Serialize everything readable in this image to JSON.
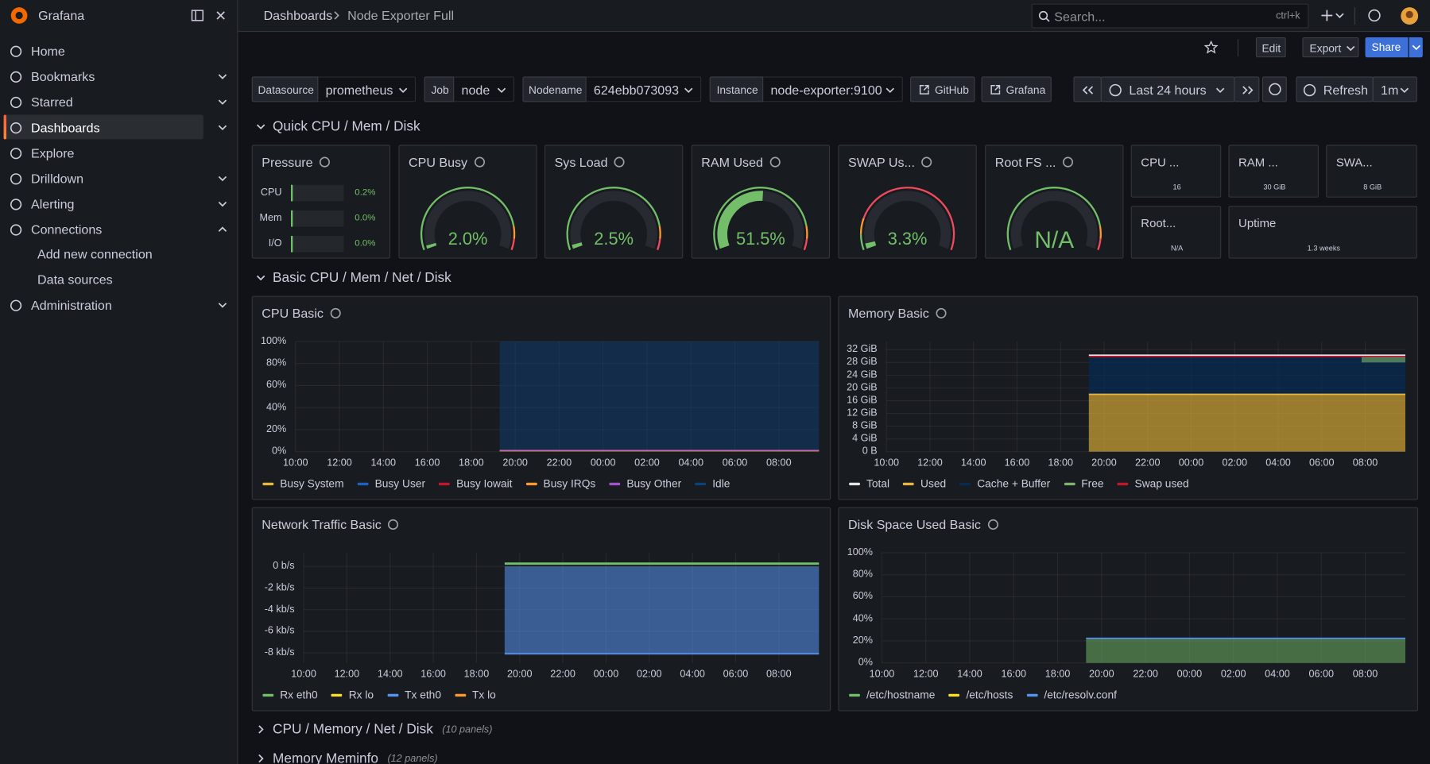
{
  "sidebar": {
    "brand": "Grafana",
    "items": [
      "Home",
      "Bookmarks",
      "Starred",
      "Dashboards",
      "Explore",
      "Drilldown",
      "Alerting",
      "Connections",
      "Administration"
    ],
    "subitems": [
      "Add new connection",
      "Data sources"
    ]
  },
  "topbar": {
    "breadcrumb": [
      "Dashboards",
      "Node Exporter Full"
    ],
    "search_placeholder": "Search...",
    "shortcut": "ctrl+k"
  },
  "toolbar": {
    "buttons": [
      "Edit",
      "Export",
      "Share"
    ]
  },
  "variables": [
    {
      "label": "Datasource",
      "value": "prometheus"
    },
    {
      "label": "Job",
      "value": "node"
    },
    {
      "label": "Nodename",
      "value": "624ebb073093"
    },
    {
      "label": "Instance",
      "value": "node-exporter:9100"
    }
  ],
  "links": [
    "GitHub",
    "Grafana"
  ],
  "time_range": "Last 24 hours",
  "refresh": "Refresh",
  "interval": "1m",
  "rows": [
    {
      "title": "Quick CPU / Mem / Disk"
    },
    {
      "title": "Basic CPU / Mem / Net / Disk"
    },
    {
      "title": "CPU / Memory / Net / Disk",
      "note": "(10 panels)"
    },
    {
      "title": "Memory Meminfo",
      "note": "(12 panels)"
    }
  ],
  "pressure": {
    "title": "Pressure",
    "rows": [
      {
        "label": "CPU",
        "value": 0.2,
        "value_label": "0.2%"
      },
      {
        "label": "Mem",
        "value": 0,
        "value_label": "0.0%"
      },
      {
        "label": "I/O",
        "value": 0,
        "value_label": "0.0%"
      }
    ]
  },
  "gauges": [
    {
      "title": "CPU Busy",
      "value": 2,
      "value_label": "2.0%"
    },
    {
      "title": "Sys Load",
      "value": 2.5,
      "value_label": "2.5%"
    },
    {
      "title": "RAM Used",
      "value": 51.5,
      "value_label": "51.5%"
    },
    {
      "title": "SWAP Us...",
      "value": 3.3,
      "value_label": "3.3%"
    },
    {
      "title": "Root FS ...",
      "value": null,
      "value_label": "N/A"
    }
  ],
  "stats": [
    {
      "title": "CPU ...",
      "value": "16"
    },
    {
      "title": "RAM ...",
      "value": "30 GiB"
    },
    {
      "title": "SWA...",
      "value": "8 GiB"
    },
    {
      "title": "Root...",
      "value": "N/A"
    },
    {
      "title": "Uptime",
      "value": "1.3 weeks"
    }
  ],
  "panels": [
    {
      "title": "CPU Basic",
      "yticks": [
        "0%",
        "20%",
        "40%",
        "60%",
        "80%",
        "100%"
      ],
      "xticks": [
        "10:00",
        "12:00",
        "14:00",
        "16:00",
        "18:00",
        "20:00",
        "22:00",
        "00:00",
        "02:00",
        "04:00",
        "06:00",
        "08:00"
      ],
      "legend": [
        {
          "name": "Busy System",
          "color": "#eab839"
        },
        {
          "name": "Busy User",
          "color": "#1f60c4"
        },
        {
          "name": "Busy Iowait",
          "color": "#c4162a"
        },
        {
          "name": "Busy IRQs",
          "color": "#ff9830"
        },
        {
          "name": "Busy Other",
          "color": "#a352cc"
        },
        {
          "name": "Idle",
          "color": "#0a437c"
        }
      ]
    },
    {
      "title": "Memory Basic",
      "yticks": [
        "0 B",
        "4 GiB",
        "8 GiB",
        "12 GiB",
        "16 GiB",
        "20 GiB",
        "24 GiB",
        "28 GiB",
        "32 GiB"
      ],
      "xticks": [
        "10:00",
        "12:00",
        "14:00",
        "16:00",
        "18:00",
        "20:00",
        "22:00",
        "00:00",
        "02:00",
        "04:00",
        "06:00",
        "08:00"
      ],
      "legend": [
        {
          "name": "Total",
          "color": "#e6e6e6"
        },
        {
          "name": "Used",
          "color": "#eab839"
        },
        {
          "name": "Cache + Buffer",
          "color": "#052b51"
        },
        {
          "name": "Free",
          "color": "#7eb26d"
        },
        {
          "name": "Swap used",
          "color": "#c4162a"
        }
      ]
    },
    {
      "title": "Network Traffic Basic",
      "yticks": [
        "-8 kb/s",
        "-6 kb/s",
        "-4 kb/s",
        "-2 kb/s",
        "0 b/s"
      ],
      "xticks": [
        "10:00",
        "12:00",
        "14:00",
        "16:00",
        "18:00",
        "20:00",
        "22:00",
        "00:00",
        "02:00",
        "04:00",
        "06:00",
        "08:00"
      ],
      "legend": [
        {
          "name": "Rx eth0",
          "color": "#73bf69"
        },
        {
          "name": "Rx lo",
          "color": "#fade2a"
        },
        {
          "name": "Tx eth0",
          "color": "#5794f2"
        },
        {
          "name": "Tx lo",
          "color": "#ff9830"
        }
      ]
    },
    {
      "title": "Disk Space Used Basic",
      "yticks": [
        "0%",
        "20%",
        "40%",
        "60%",
        "80%",
        "100%"
      ],
      "xticks": [
        "10:00",
        "12:00",
        "14:00",
        "16:00",
        "18:00",
        "20:00",
        "22:00",
        "00:00",
        "02:00",
        "04:00",
        "06:00",
        "08:00"
      ],
      "legend": [
        {
          "name": "/etc/hostname",
          "color": "#73bf69"
        },
        {
          "name": "/etc/hosts",
          "color": "#fade2a"
        },
        {
          "name": "/etc/resolv.conf",
          "color": "#5794f2"
        }
      ]
    }
  ]
}
